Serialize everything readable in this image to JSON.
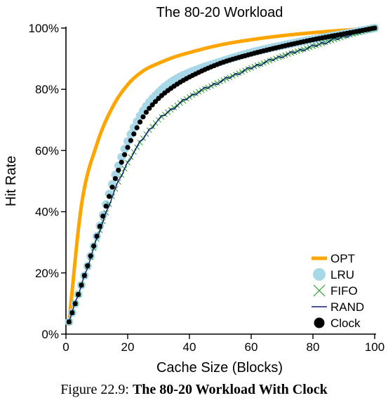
{
  "chart_data": {
    "type": "line",
    "title": "The 80-20 Workload",
    "xlabel": "Cache Size (Blocks)",
    "ylabel": "Hit Rate",
    "xlim": [
      0,
      100
    ],
    "ylim": [
      0,
      100
    ],
    "xticks": [
      0,
      20,
      40,
      60,
      80,
      100
    ],
    "yticks": [
      0,
      20,
      40,
      60,
      80,
      100
    ],
    "xtick_labels": [
      "0",
      "20",
      "40",
      "60",
      "80",
      "100"
    ],
    "ytick_labels": [
      "0%",
      "20%",
      "40%",
      "60%",
      "80%",
      "100%"
    ],
    "grid": false,
    "legend_position": "bottom-right",
    "x": [
      1,
      5,
      10,
      15,
      20,
      25,
      30,
      35,
      40,
      50,
      60,
      70,
      80,
      90,
      100
    ],
    "series": [
      {
        "name": "OPT",
        "color": "#ffa500",
        "marker": "thick-line",
        "values": [
          4,
          42,
          62,
          74,
          81.5,
          86,
          88.5,
          90.5,
          92,
          94.5,
          96.2,
          97.5,
          98.5,
          99.3,
          100
        ]
      },
      {
        "name": "LRU",
        "color": "#a8d8e8",
        "marker": "large-circle",
        "values": [
          4,
          16,
          32,
          49,
          63,
          73,
          79,
          83,
          85.5,
          89,
          92,
          94.3,
          96.3,
          98.1,
          100
        ]
      },
      {
        "name": "FIFO",
        "color": "#2e9c2e",
        "marker": "x",
        "values": [
          4,
          16,
          31,
          45,
          56,
          64,
          70,
          74,
          77.5,
          82.5,
          87,
          90.8,
          94,
          97.2,
          100
        ]
      },
      {
        "name": "RAND",
        "color": "#0d1b7a",
        "marker": "line",
        "values": [
          4,
          16,
          31,
          45,
          56,
          64,
          70,
          74,
          77.5,
          82.5,
          87,
          90.8,
          94,
          97.2,
          100
        ]
      },
      {
        "name": "Clock",
        "color": "#000000",
        "marker": "filled-circle",
        "values": [
          4,
          16,
          32,
          48,
          61,
          71,
          77,
          81,
          84,
          88.5,
          91.5,
          94,
          96.2,
          98.1,
          100
        ]
      }
    ]
  },
  "caption": {
    "figure_label": "Figure 22.9:",
    "title": "The 80-20 Workload With Clock"
  }
}
